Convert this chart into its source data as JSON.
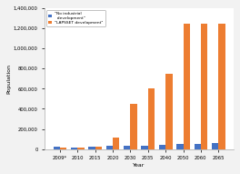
{
  "years": [
    "2009*",
    "2010",
    "2015",
    "2020",
    "2030",
    "2035",
    "2040",
    "2050",
    "2060",
    "2065"
  ],
  "no_industrial": [
    20000,
    18000,
    22000,
    30000,
    35000,
    35000,
    40000,
    50000,
    55000,
    60000
  ],
  "lapsset": [
    12000,
    18000,
    22000,
    110000,
    450000,
    600000,
    750000,
    1250000,
    1250000,
    1250000
  ],
  "bar_color_blue": "#4472C4",
  "bar_color_orange": "#ED7D31",
  "legend_label_blue": "\"No industrial\n  development\"",
  "legend_label_orange": "\"LAPSSET development\"",
  "ylabel": "Population",
  "xlabel": "Year",
  "ylim": [
    0,
    1400000
  ],
  "yticks": [
    0,
    200000,
    400000,
    600000,
    800000,
    1000000,
    1200000,
    1400000
  ],
  "background_color": "#f2f2f2",
  "plot_bg_color": "#ffffff",
  "grid_color": "#ffffff"
}
